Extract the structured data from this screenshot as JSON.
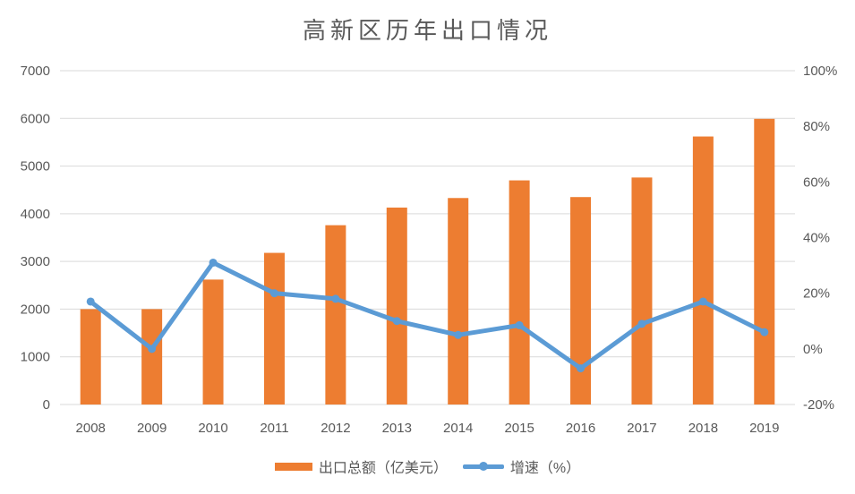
{
  "title": "高新区历年出口情况",
  "colors": {
    "bar": "#ED7D31",
    "line": "#5B9BD5",
    "grid": "#D9D9D9",
    "text": "#595959",
    "background": "#FFFFFF"
  },
  "legend": {
    "bar_label": "出口总额（亿美元）",
    "line_label": "增速（%）"
  },
  "chart_data": {
    "type": "bar+line combo",
    "title": "高新区历年出口情况",
    "categories": [
      "2008",
      "2009",
      "2010",
      "2011",
      "2012",
      "2013",
      "2014",
      "2015",
      "2016",
      "2017",
      "2018",
      "2019"
    ],
    "series": [
      {
        "name": "出口总额（亿美元）",
        "type": "bar",
        "axis": "left",
        "color": "#ED7D31",
        "values": [
          2000,
          2000,
          2620,
          3180,
          3760,
          4130,
          4330,
          4700,
          4350,
          4760,
          5620,
          5990
        ]
      },
      {
        "name": "增速（%）",
        "type": "line",
        "axis": "right",
        "color": "#5B9BD5",
        "values": [
          17,
          0,
          31,
          20,
          18,
          10,
          5,
          8.5,
          -7,
          9,
          17,
          6
        ]
      }
    ],
    "left_axis": {
      "min": 0,
      "max": 7000,
      "step": 1000,
      "tick_labels": [
        "0",
        "1000",
        "2000",
        "3000",
        "4000",
        "5000",
        "6000",
        "7000"
      ]
    },
    "right_axis": {
      "min": -20,
      "max": 100,
      "step": 20,
      "tick_labels": [
        "-20%",
        "0%",
        "20%",
        "40%",
        "60%",
        "80%",
        "100%"
      ]
    },
    "grid": true,
    "legend_position": "bottom"
  }
}
